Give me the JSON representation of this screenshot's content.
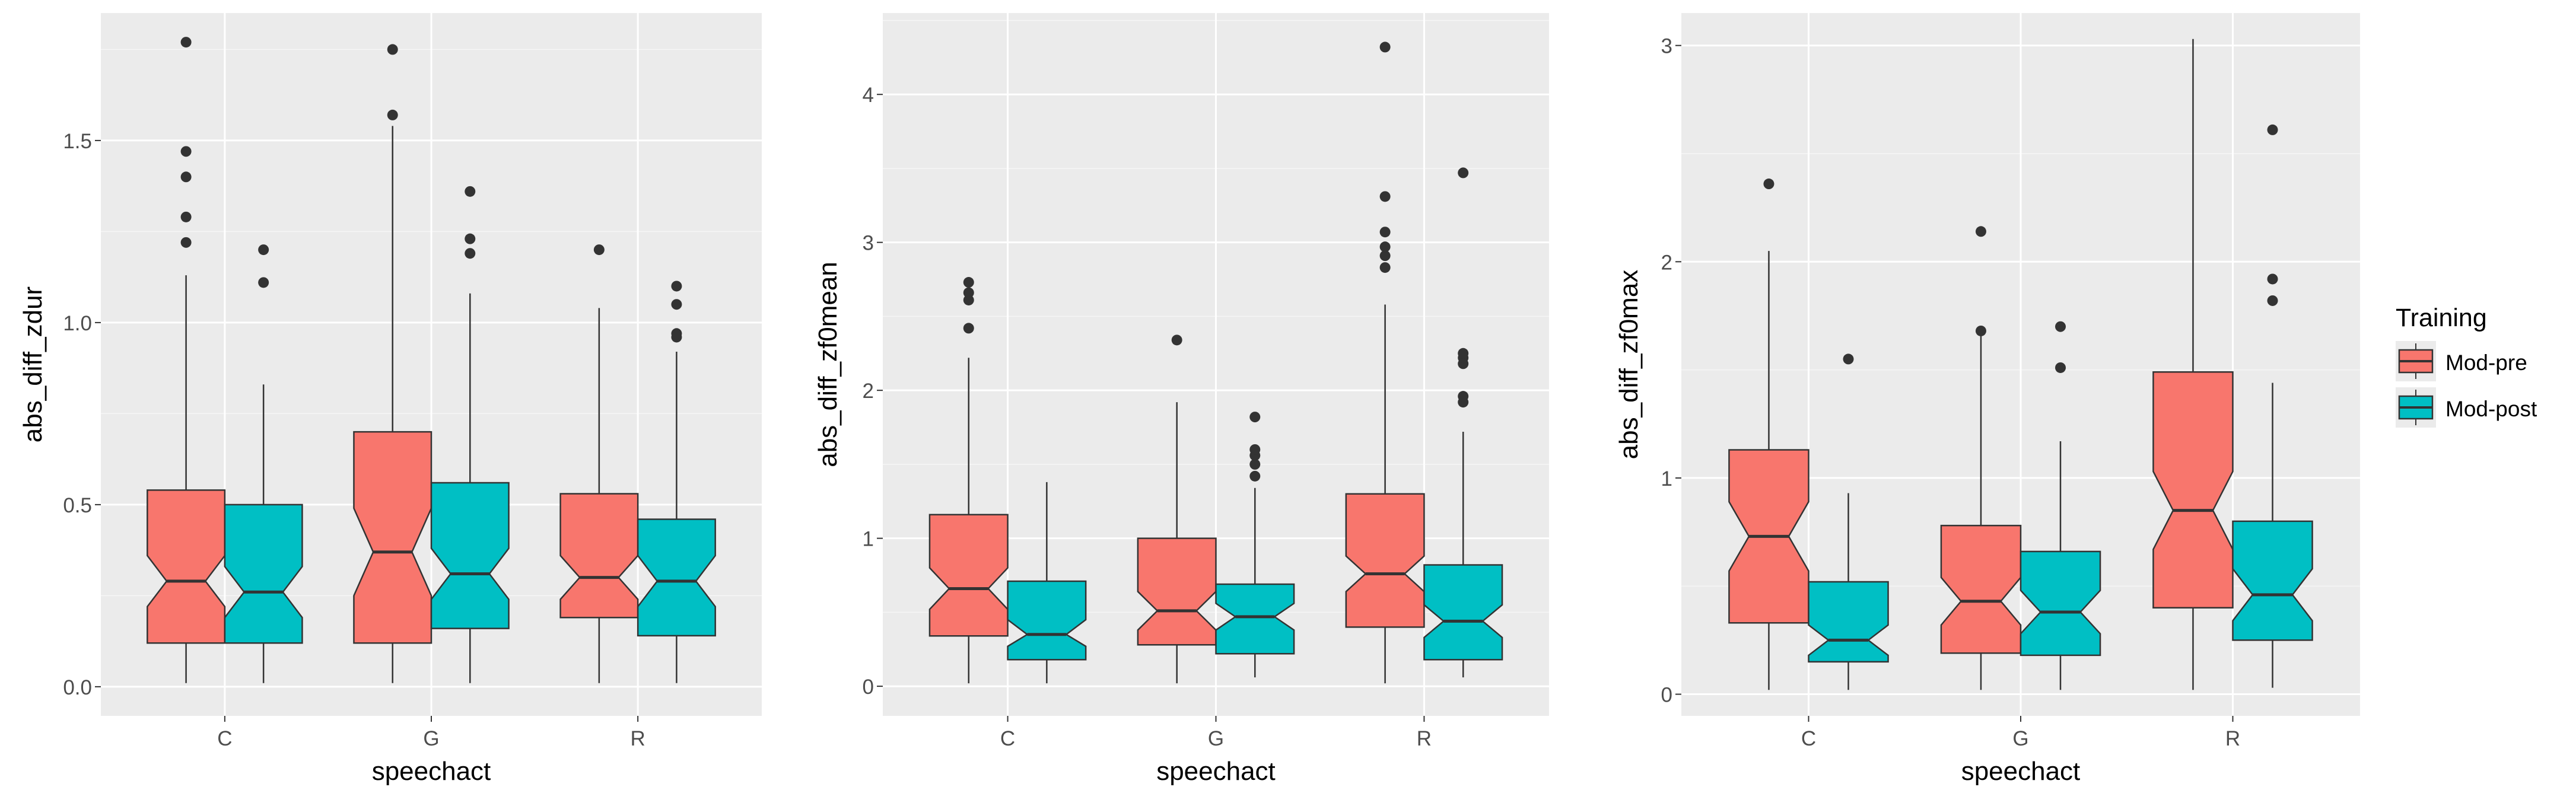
{
  "legend": {
    "title": "Training",
    "items": [
      {
        "label": "Mod-pre",
        "color": "#F8766D"
      },
      {
        "label": "Mod-post",
        "color": "#00BFC4"
      }
    ]
  },
  "chart_data": [
    {
      "type": "boxplot",
      "notched": true,
      "xlabel": "speechact",
      "ylabel": "abs_diff_zdur",
      "categories": [
        "C",
        "G",
        "R"
      ],
      "groups": [
        "Mod-pre",
        "Mod-post"
      ],
      "ylim": [
        -0.08,
        1.85
      ],
      "yticks": [
        0.0,
        0.5,
        1.0,
        1.5
      ],
      "ytick_labels": [
        "0.0",
        "0.5",
        "1.0",
        "1.5"
      ],
      "boxes": [
        {
          "category": "C",
          "group": "Mod-pre",
          "q1": 0.12,
          "median": 0.29,
          "q3": 0.54,
          "notch_low": 0.22,
          "notch_high": 0.36,
          "whisker_low": 0.01,
          "whisker_high": 1.13,
          "outliers": [
            1.22,
            1.29,
            1.4,
            1.47,
            1.77
          ]
        },
        {
          "category": "C",
          "group": "Mod-post",
          "q1": 0.12,
          "median": 0.26,
          "q3": 0.5,
          "notch_low": 0.19,
          "notch_high": 0.33,
          "whisker_low": 0.01,
          "whisker_high": 0.83,
          "outliers": [
            1.11,
            1.2
          ]
        },
        {
          "category": "G",
          "group": "Mod-pre",
          "q1": 0.12,
          "median": 0.37,
          "q3": 0.7,
          "notch_low": 0.25,
          "notch_high": 0.49,
          "whisker_low": 0.01,
          "whisker_high": 1.54,
          "outliers": [
            1.57,
            1.75
          ]
        },
        {
          "category": "G",
          "group": "Mod-post",
          "q1": 0.16,
          "median": 0.31,
          "q3": 0.56,
          "notch_low": 0.24,
          "notch_high": 0.38,
          "whisker_low": 0.01,
          "whisker_high": 1.08,
          "outliers": [
            1.19,
            1.23,
            1.36
          ]
        },
        {
          "category": "R",
          "group": "Mod-pre",
          "q1": 0.19,
          "median": 0.3,
          "q3": 0.53,
          "notch_low": 0.24,
          "notch_high": 0.36,
          "whisker_low": 0.01,
          "whisker_high": 1.04,
          "outliers": [
            1.2
          ]
        },
        {
          "category": "R",
          "group": "Mod-post",
          "q1": 0.14,
          "median": 0.29,
          "q3": 0.46,
          "notch_low": 0.22,
          "notch_high": 0.36,
          "whisker_low": 0.01,
          "whisker_high": 0.92,
          "outliers": [
            0.96,
            0.97,
            1.05,
            1.1
          ]
        }
      ]
    },
    {
      "type": "boxplot",
      "notched": true,
      "xlabel": "speechact",
      "ylabel": "abs_diff_zf0mean",
      "categories": [
        "C",
        "G",
        "R"
      ],
      "groups": [
        "Mod-pre",
        "Mod-post"
      ],
      "ylim": [
        -0.2,
        4.55
      ],
      "yticks": [
        0,
        1,
        2,
        3,
        4
      ],
      "ytick_labels": [
        "0",
        "1",
        "2",
        "3",
        "4"
      ],
      "boxes": [
        {
          "category": "C",
          "group": "Mod-pre",
          "q1": 0.34,
          "median": 0.66,
          "q3": 1.16,
          "notch_low": 0.52,
          "notch_high": 0.8,
          "whisker_low": 0.02,
          "whisker_high": 2.22,
          "outliers": [
            2.42,
            2.61,
            2.66,
            2.73
          ]
        },
        {
          "category": "C",
          "group": "Mod-post",
          "q1": 0.18,
          "median": 0.35,
          "q3": 0.71,
          "notch_low": 0.27,
          "notch_high": 0.45,
          "whisker_low": 0.02,
          "whisker_high": 1.38,
          "outliers": []
        },
        {
          "category": "G",
          "group": "Mod-pre",
          "q1": 0.28,
          "median": 0.51,
          "q3": 1.0,
          "notch_low": 0.38,
          "notch_high": 0.64,
          "whisker_low": 0.02,
          "whisker_high": 1.92,
          "outliers": [
            2.34
          ]
        },
        {
          "category": "G",
          "group": "Mod-post",
          "q1": 0.22,
          "median": 0.47,
          "q3": 0.69,
          "notch_low": 0.38,
          "notch_high": 0.56,
          "whisker_low": 0.06,
          "whisker_high": 1.34,
          "outliers": [
            1.42,
            1.5,
            1.56,
            1.6,
            1.82
          ]
        },
        {
          "category": "R",
          "group": "Mod-pre",
          "q1": 0.4,
          "median": 0.76,
          "q3": 1.3,
          "notch_low": 0.64,
          "notch_high": 0.88,
          "whisker_low": 0.02,
          "whisker_high": 2.58,
          "outliers": [
            2.83,
            2.91,
            2.97,
            3.07,
            3.31,
            4.32
          ]
        },
        {
          "category": "R",
          "group": "Mod-post",
          "q1": 0.18,
          "median": 0.44,
          "q3": 0.82,
          "notch_low": 0.33,
          "notch_high": 0.55,
          "whisker_low": 0.06,
          "whisker_high": 1.72,
          "outliers": [
            1.92,
            1.96,
            2.18,
            2.22,
            2.25,
            3.47
          ]
        }
      ]
    },
    {
      "type": "boxplot",
      "notched": true,
      "xlabel": "speechact",
      "ylabel": "abs_diff_zf0max",
      "categories": [
        "C",
        "G",
        "R"
      ],
      "groups": [
        "Mod-pre",
        "Mod-post"
      ],
      "ylim": [
        -0.1,
        3.15
      ],
      "yticks": [
        0,
        1,
        2,
        3
      ],
      "ytick_labels": [
        "0",
        "1",
        "2",
        "3"
      ],
      "boxes": [
        {
          "category": "C",
          "group": "Mod-pre",
          "q1": 0.33,
          "median": 0.73,
          "q3": 1.13,
          "notch_low": 0.57,
          "notch_high": 0.89,
          "whisker_low": 0.02,
          "whisker_high": 2.05,
          "outliers": [
            2.36
          ]
        },
        {
          "category": "C",
          "group": "Mod-post",
          "q1": 0.15,
          "median": 0.25,
          "q3": 0.52,
          "notch_low": 0.18,
          "notch_high": 0.32,
          "whisker_low": 0.02,
          "whisker_high": 0.93,
          "outliers": [
            1.55
          ]
        },
        {
          "category": "G",
          "group": "Mod-pre",
          "q1": 0.19,
          "median": 0.43,
          "q3": 0.78,
          "notch_low": 0.32,
          "notch_high": 0.54,
          "whisker_low": 0.02,
          "whisker_high": 1.66,
          "outliers": [
            1.68,
            2.14
          ]
        },
        {
          "category": "G",
          "group": "Mod-post",
          "q1": 0.18,
          "median": 0.38,
          "q3": 0.66,
          "notch_low": 0.28,
          "notch_high": 0.48,
          "whisker_low": 0.02,
          "whisker_high": 1.17,
          "outliers": [
            1.51,
            1.7
          ]
        },
        {
          "category": "R",
          "group": "Mod-pre",
          "q1": 0.4,
          "median": 0.85,
          "q3": 1.49,
          "notch_low": 0.67,
          "notch_high": 1.03,
          "whisker_low": 0.02,
          "whisker_high": 3.03,
          "outliers": []
        },
        {
          "category": "R",
          "group": "Mod-post",
          "q1": 0.25,
          "median": 0.46,
          "q3": 0.8,
          "notch_low": 0.34,
          "notch_high": 0.58,
          "whisker_low": 0.03,
          "whisker_high": 1.44,
          "outliers": [
            1.82,
            1.92,
            2.61
          ]
        }
      ]
    }
  ]
}
